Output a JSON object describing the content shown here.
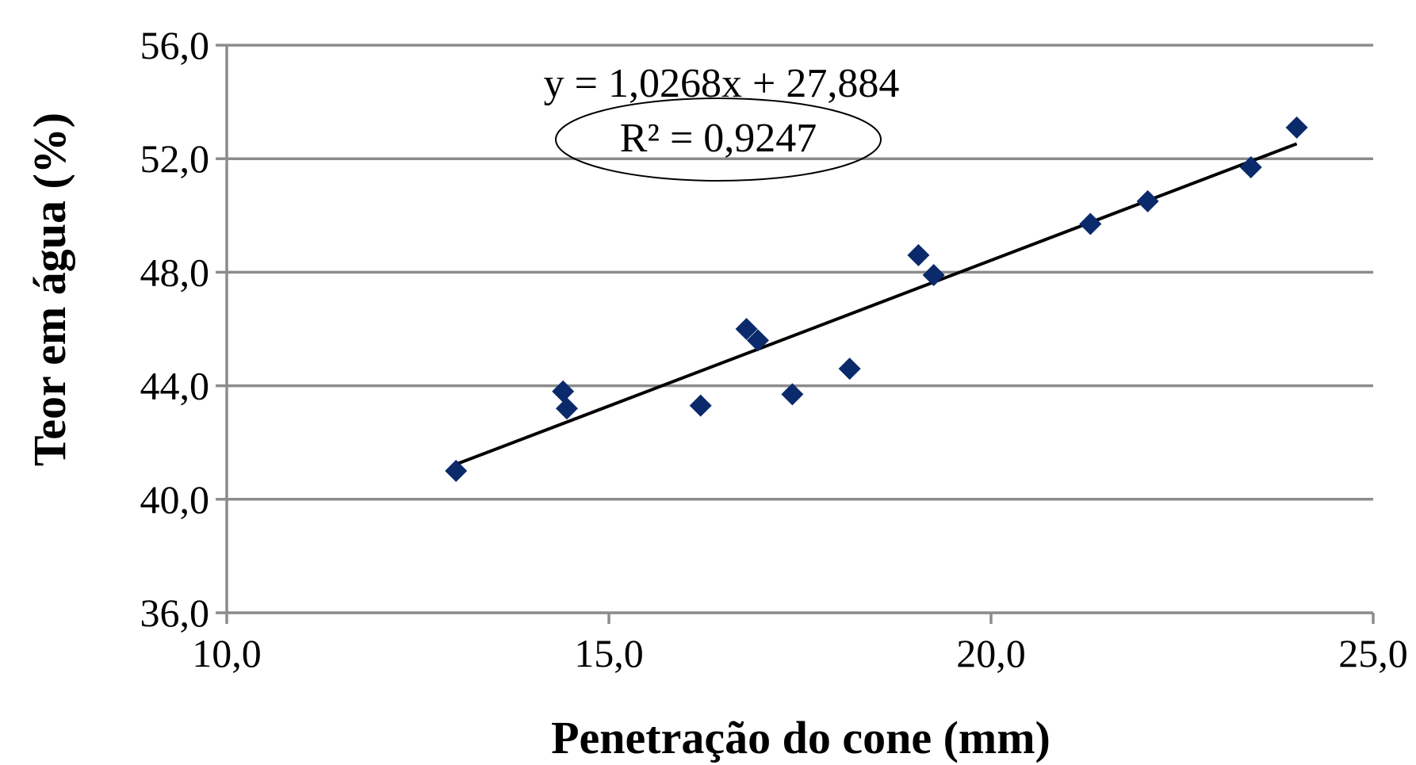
{
  "chart_data": {
    "type": "scatter",
    "title": "",
    "xlabel": "Penetração do cone (mm)",
    "ylabel": "Teor em água (%)",
    "xlim": [
      10,
      25
    ],
    "ylim": [
      36,
      56
    ],
    "x_ticks": [
      "10,0",
      "15,0",
      "20,0",
      "25,0"
    ],
    "y_ticks": [
      "36,0",
      "40,0",
      "44,0",
      "48,0",
      "52,0",
      "56,0"
    ],
    "grid": "horizontal",
    "marker": "diamond",
    "colors": {
      "points": "#0b2a6b",
      "trendline": "#000000",
      "grid": "#8c8c8c"
    },
    "series": [
      {
        "x": [
          13.0,
          14.4,
          14.45,
          16.2,
          16.8,
          16.95,
          17.4,
          18.15,
          19.05,
          19.25,
          21.3,
          22.05,
          23.4,
          24.0
        ],
        "y": [
          41.0,
          43.8,
          43.2,
          43.3,
          46.0,
          45.6,
          43.7,
          44.6,
          48.6,
          47.9,
          49.7,
          50.5,
          51.7,
          53.1
        ]
      }
    ],
    "trendline": {
      "slope": 1.0268,
      "intercept": 27.884,
      "x_range": [
        13.0,
        24.0
      ],
      "equation": "y = 1,0268x + 27,884",
      "r2_label": "R² = 0,9247"
    }
  }
}
